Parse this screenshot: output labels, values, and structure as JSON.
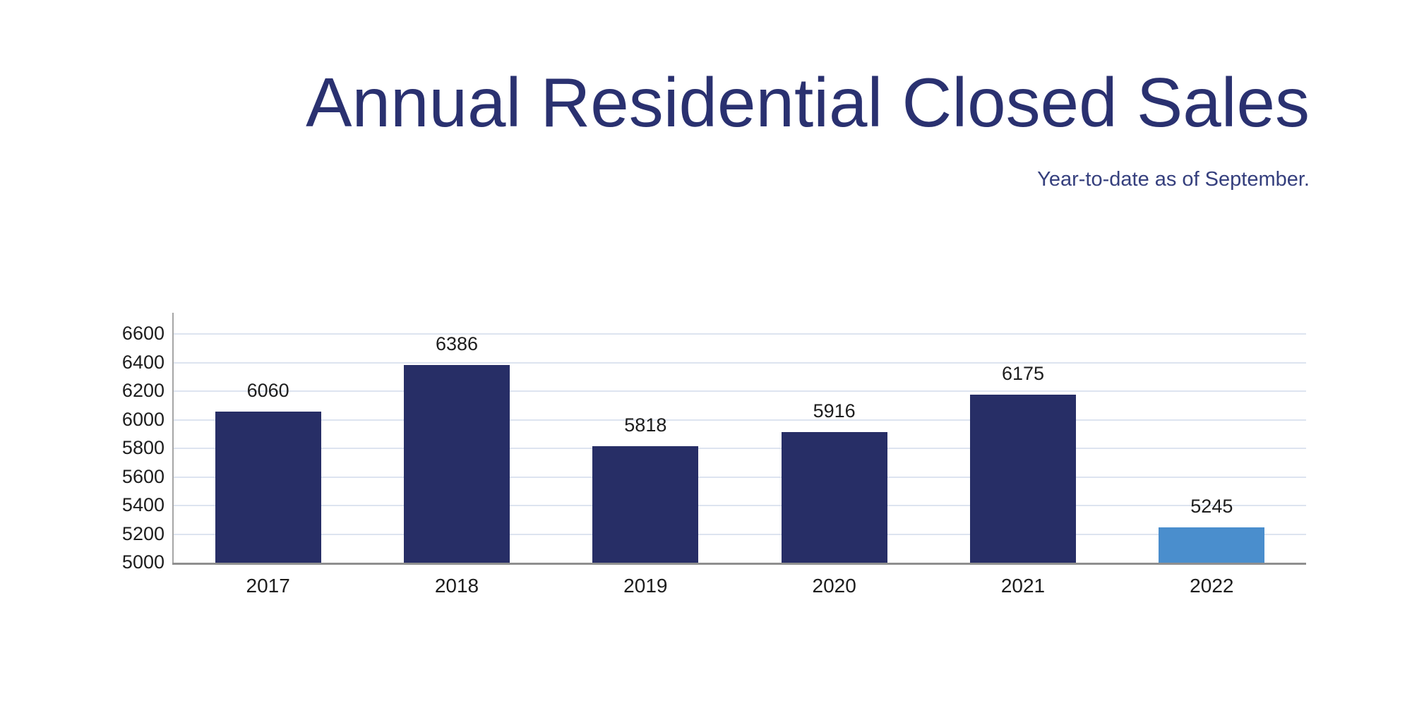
{
  "header": {
    "title": "Annual Residential Closed Sales",
    "subtitle": "Year-to-date as of September."
  },
  "chart_data": {
    "type": "bar",
    "title": "Annual Residential Closed Sales",
    "subtitle": "Year-to-date as of September.",
    "categories": [
      "2017",
      "2018",
      "2019",
      "2020",
      "2021",
      "2022"
    ],
    "values": [
      6060,
      6386,
      5818,
      5916,
      6175,
      5245
    ],
    "bar_colors": [
      "#272e66",
      "#272e66",
      "#272e66",
      "#272e66",
      "#272e66",
      "#4a8ecd"
    ],
    "value_labels_shown": true,
    "xlabel": "",
    "ylabel": "",
    "ylim": [
      5000,
      6750
    ],
    "yticks": [
      5000,
      5200,
      5400,
      5600,
      5800,
      6000,
      6200,
      6400,
      6600
    ],
    "grid": "horizontal",
    "legend": "none"
  },
  "colors": {
    "bar_navy": "#272e66",
    "bar_highlight_blue": "#4a8ecd",
    "title_text": "#2a3170",
    "subtitle_text": "#353f7d",
    "axis_label_text": "#1d1d1d",
    "gridline": "#dde4f0",
    "x_axis_line": "#8f8f8f",
    "y_axis_line": "#a6a6a6",
    "background": "#ffffff"
  }
}
